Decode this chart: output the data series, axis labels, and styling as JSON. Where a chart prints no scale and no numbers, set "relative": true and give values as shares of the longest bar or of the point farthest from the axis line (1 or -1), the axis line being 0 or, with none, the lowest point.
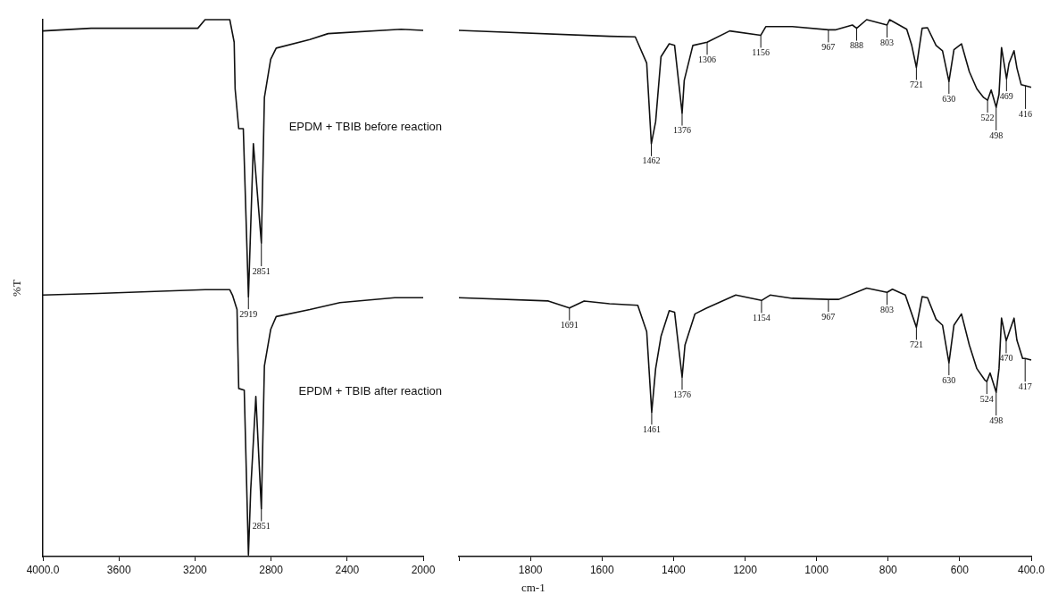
{
  "chart_data": [
    {
      "type": "line",
      "ylabel": "%T",
      "relative": true,
      "legend": false,
      "grid": false,
      "marker": "none",
      "line_style": "solid",
      "xlim": [
        4000,
        2000
      ],
      "xticks": [
        {
          "value": 4000,
          "label": "4000.0"
        },
        3600,
        3200,
        2800,
        2400,
        2000
      ],
      "series": [
        {
          "name": "EPDM + TBIB before reaction",
          "color": "#111111",
          "x": [
            4000,
            3746,
            3185,
            3147,
            3017,
            2994,
            2989,
            2970,
            2946,
            2919,
            2893,
            2851,
            2835,
            2802,
            2773,
            2596,
            2500,
            2116,
            2000
          ],
          "values": [
            0.979,
            0.984,
            0.984,
            1.0,
            1.0,
            0.958,
            0.871,
            0.797,
            0.797,
            0.484,
            0.769,
            0.584,
            0.855,
            0.926,
            0.947,
            0.963,
            0.974,
            0.982,
            0.98
          ]
        },
        {
          "name": "EPDM + TBIB after reaction",
          "color": "#111111",
          "x": [
            4000,
            3712,
            3147,
            3017,
            3003,
            2979,
            2970,
            2941,
            2919,
            2907,
            2880,
            2851,
            2835,
            2802,
            2773,
            2596,
            2438,
            2150,
            2000
          ],
          "values": [
            0.487,
            0.49,
            0.497,
            0.497,
            0.487,
            0.46,
            0.313,
            0.31,
            0.003,
            0.124,
            0.298,
            0.089,
            0.355,
            0.423,
            0.447,
            0.46,
            0.473,
            0.482,
            0.482
          ]
        }
      ],
      "annotations": [
        {
          "text": "2919",
          "x": 2919,
          "y": 0.484
        },
        {
          "text": "2851",
          "x": 2851,
          "y": 0.584
        },
        {
          "text": "2851",
          "x": 2851,
          "y": 0.089
        }
      ]
    },
    {
      "type": "line",
      "xlabel": "cm-1",
      "relative": true,
      "legend": false,
      "grid": false,
      "marker": "none",
      "line_style": "solid",
      "xlim": [
        2000,
        400
      ],
      "xticks": [
        {
          "value": 2000,
          "label": null
        },
        1800,
        1600,
        1400,
        1200,
        1000,
        800,
        600,
        {
          "value": 400,
          "label": "400.0"
        }
      ],
      "series": [
        {
          "color": "#111111",
          "x": [
            2000,
            1579,
            1507,
            1475,
            1462,
            1450,
            1435,
            1412,
            1397,
            1376,
            1370,
            1346,
            1306,
            1243,
            1156,
            1142,
            1068,
            967,
            948,
            900,
            888,
            860,
            803,
            796,
            748,
            734,
            721,
            705,
            690,
            666,
            648,
            630,
            616,
            595,
            573,
            552,
            533,
            522,
            512,
            498,
            490,
            483,
            469,
            462,
            448,
            440,
            428,
            416,
            400
          ],
          "values": [
            0.98,
            0.969,
            0.968,
            0.919,
            0.769,
            0.81,
            0.931,
            0.955,
            0.952,
            0.826,
            0.887,
            0.952,
            0.958,
            0.979,
            0.971,
            0.987,
            0.987,
            0.981,
            0.981,
            0.99,
            0.984,
            1.0,
            0.99,
            1.0,
            0.982,
            0.952,
            0.911,
            0.984,
            0.985,
            0.952,
            0.942,
            0.885,
            0.944,
            0.955,
            0.903,
            0.871,
            0.855,
            0.85,
            0.869,
            0.837,
            0.861,
            0.948,
            0.89,
            0.919,
            0.942,
            0.91,
            0.879,
            0.877,
            0.874
          ]
        },
        {
          "color": "#111111",
          "x": [
            2000,
            1750,
            1691,
            1650,
            1579,
            1500,
            1475,
            1461,
            1450,
            1435,
            1412,
            1397,
            1376,
            1368,
            1340,
            1307,
            1226,
            1154,
            1130,
            1068,
            967,
            938,
            860,
            803,
            788,
            752,
            721,
            705,
            690,
            666,
            648,
            630,
            616,
            595,
            573,
            552,
            530,
            524,
            515,
            498,
            490,
            483,
            470,
            448,
            440,
            424,
            417,
            400
          ],
          "values": [
            0.482,
            0.476,
            0.463,
            0.476,
            0.471,
            0.468,
            0.419,
            0.269,
            0.35,
            0.41,
            0.458,
            0.455,
            0.334,
            0.394,
            0.452,
            0.463,
            0.487,
            0.477,
            0.487,
            0.481,
            0.479,
            0.479,
            0.5,
            0.492,
            0.498,
            0.487,
            0.427,
            0.484,
            0.482,
            0.442,
            0.431,
            0.361,
            0.431,
            0.452,
            0.394,
            0.35,
            0.329,
            0.326,
            0.342,
            0.306,
            0.35,
            0.444,
            0.402,
            0.444,
            0.403,
            0.369,
            0.369,
            0.366
          ]
        }
      ],
      "annotations": [
        {
          "text": "1462",
          "x": 1462,
          "y": 0.769
        },
        {
          "text": "1376",
          "x": 1376,
          "y": 0.826
        },
        {
          "text": "1306",
          "x": 1306,
          "y": 0.958
        },
        {
          "text": "1156",
          "x": 1156,
          "y": 0.971
        },
        {
          "text": "967",
          "x": 967,
          "y": 0.981
        },
        {
          "text": "888",
          "x": 888,
          "y": 0.984
        },
        {
          "text": "803",
          "x": 803,
          "y": 0.99
        },
        {
          "text": "721",
          "x": 721,
          "y": 0.911
        },
        {
          "text": "630",
          "x": 630,
          "y": 0.885
        },
        {
          "text": "522",
          "x": 522,
          "y": 0.85
        },
        {
          "text": "498",
          "x": 498,
          "y": 0.837
        },
        {
          "text": "469",
          "x": 469,
          "y": 0.89
        },
        {
          "text": "416",
          "x": 416,
          "y": 0.877
        },
        {
          "text": "1691",
          "x": 1691,
          "y": 0.463
        },
        {
          "text": "1461",
          "x": 1461,
          "y": 0.269
        },
        {
          "text": "1376",
          "x": 1376,
          "y": 0.334
        },
        {
          "text": "1154",
          "x": 1154,
          "y": 0.477
        },
        {
          "text": "967",
          "x": 967,
          "y": 0.479
        },
        {
          "text": "803",
          "x": 803,
          "y": 0.492
        },
        {
          "text": "721",
          "x": 721,
          "y": 0.427
        },
        {
          "text": "630",
          "x": 630,
          "y": 0.361
        },
        {
          "text": "524",
          "x": 524,
          "y": 0.326
        },
        {
          "text": "498",
          "x": 498,
          "y": 0.306
        },
        {
          "text": "470",
          "x": 470,
          "y": 0.402
        },
        {
          "text": "417",
          "x": 417,
          "y": 0.369
        }
      ]
    }
  ]
}
